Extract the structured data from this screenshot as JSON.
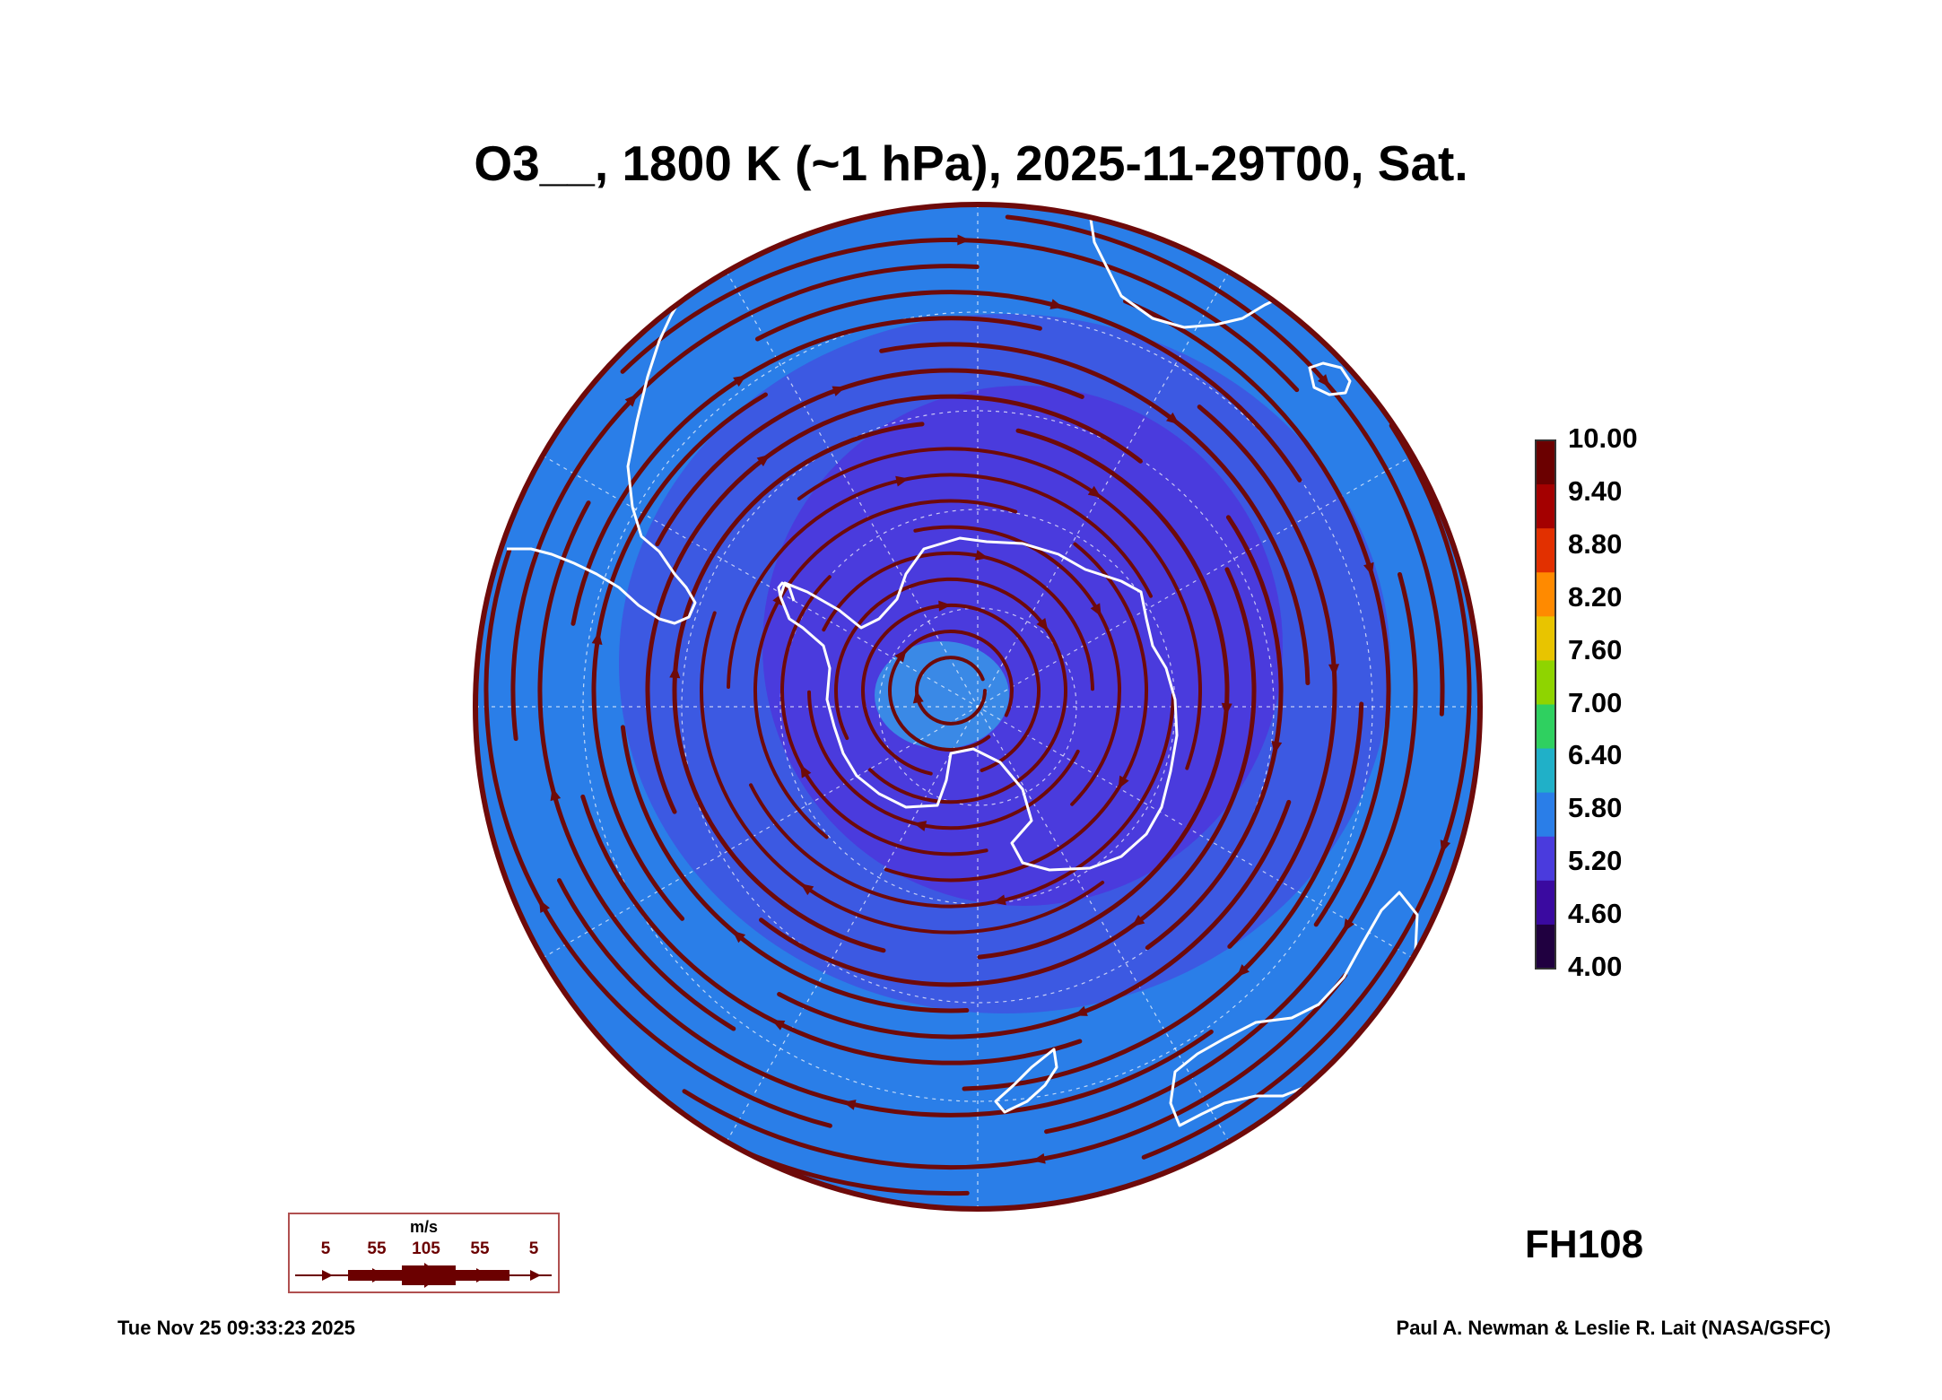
{
  "title": "O3__, 1800 K (~1 hPa), 2025-11-29T00, Sat.",
  "map": {
    "projection": "south polar stereographic",
    "field": "O3__",
    "fill_colors": {
      "mid_latitudes": "#2a7ee8",
      "vortex_region": "#4a3bdd",
      "pole_patch": "#3a89e6"
    },
    "streamline_color": "#6e0a0a",
    "coastline_color": "#ffffff",
    "grid_color": "#ffffff"
  },
  "colorbar": {
    "min": 4.0,
    "max": 10.0,
    "labels": [
      "10.00",
      "9.40",
      "8.80",
      "8.20",
      "7.60",
      "7.00",
      "6.40",
      "5.80",
      "5.20",
      "4.60",
      "4.00"
    ],
    "colors": [
      "#6b0000",
      "#a40000",
      "#e23000",
      "#ff8a00",
      "#e8c400",
      "#8fd400",
      "#2fd060",
      "#20b0c8",
      "#2a7ee8",
      "#4a3bdd",
      "#3a0aa0",
      "#200040"
    ]
  },
  "wind_scale": {
    "unit": "m/s",
    "ticks": [
      "5",
      "55",
      "105",
      "55",
      "5"
    ],
    "color": "#6b0000"
  },
  "forecast_hour": "FH108",
  "footer": {
    "timestamp": "Tue Nov 25 09:33:23 2025",
    "credit": "Paul A. Newman & Leslie R. Lait (NASA/GSFC)"
  }
}
